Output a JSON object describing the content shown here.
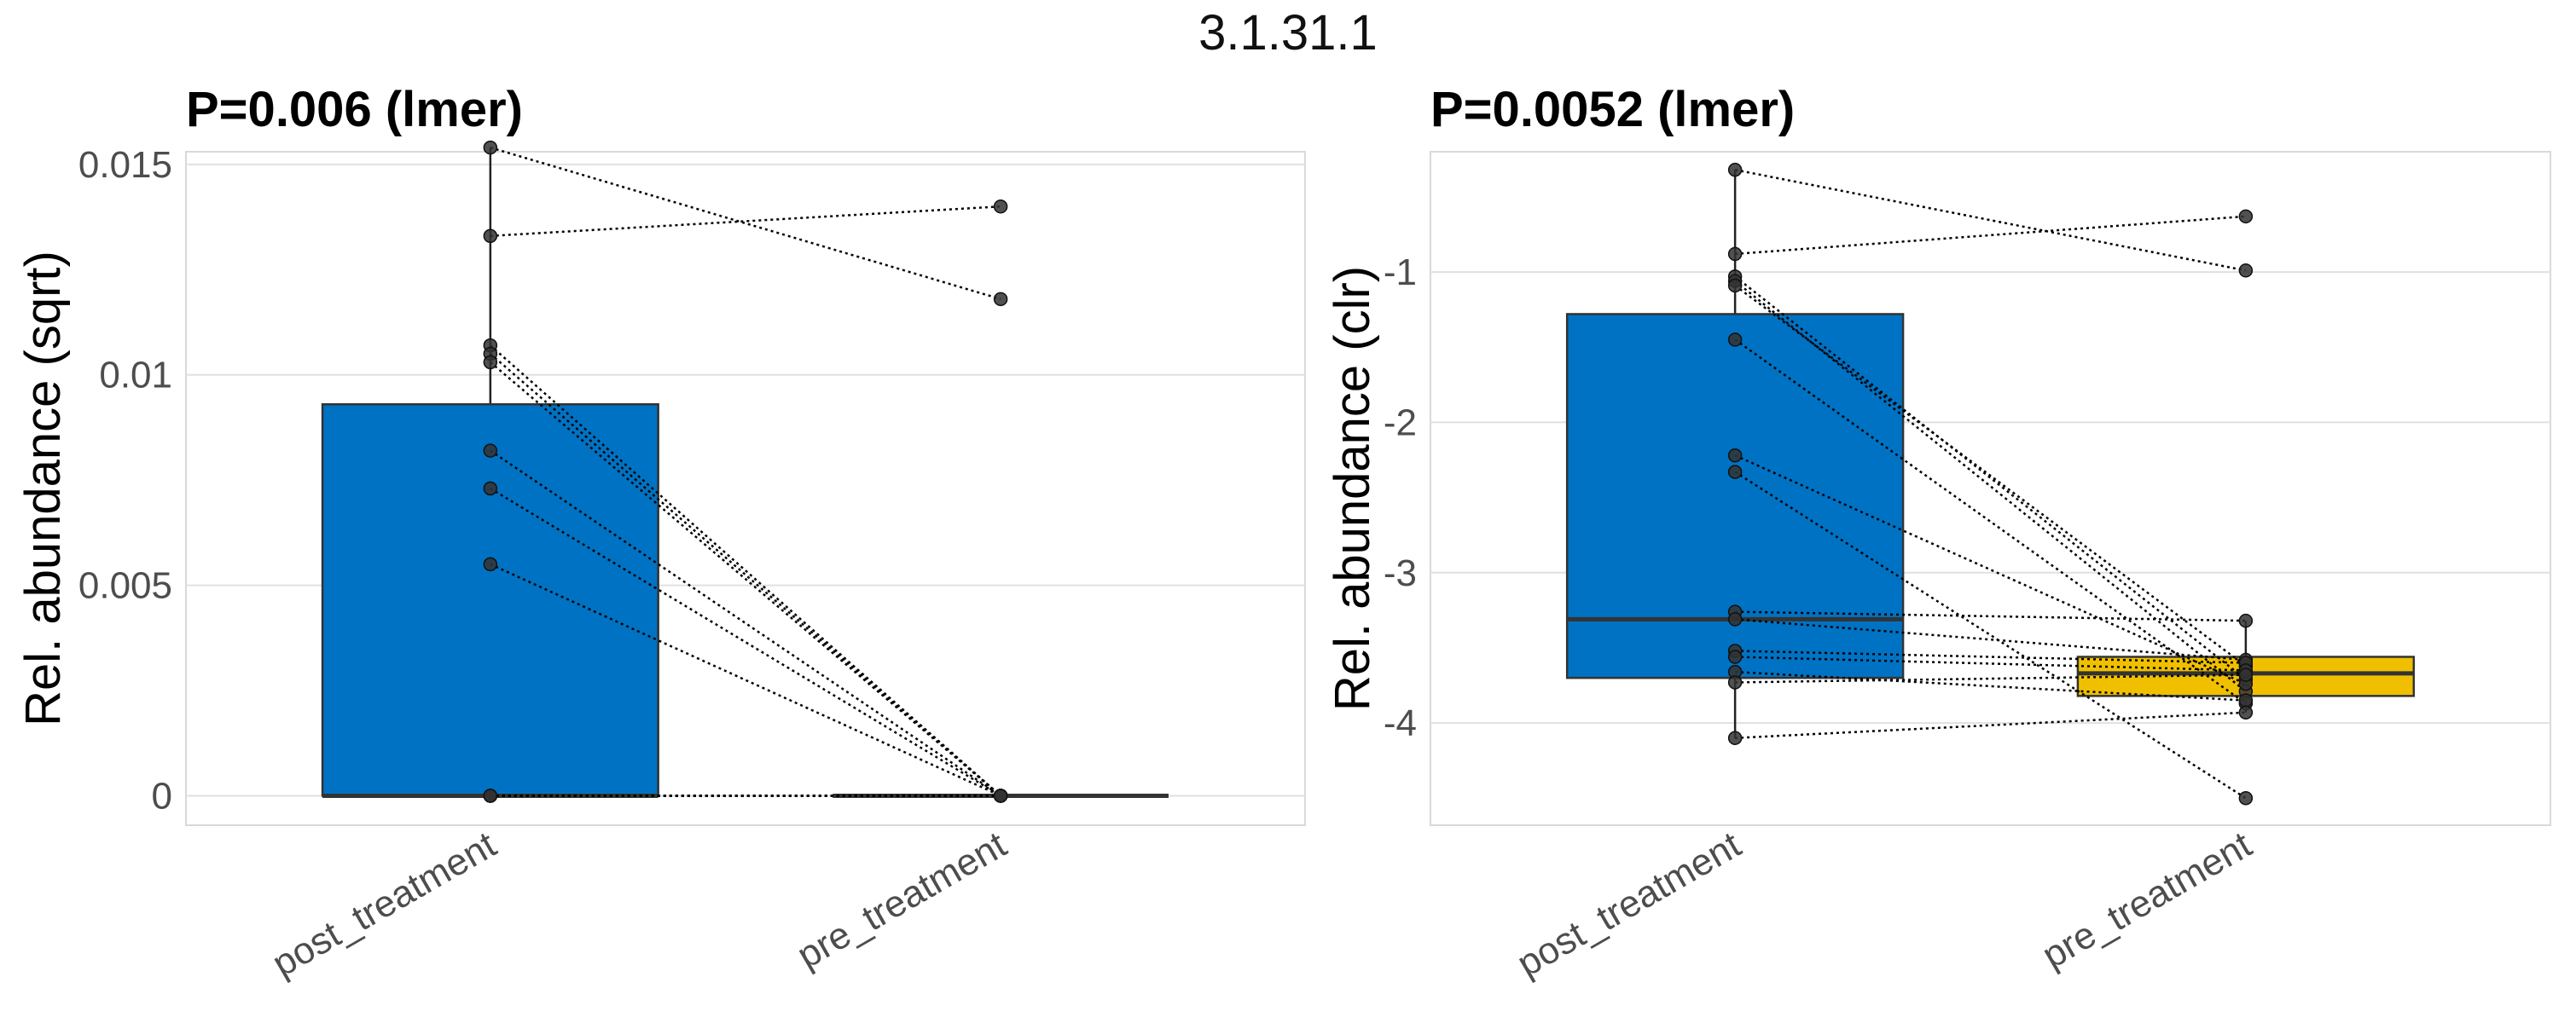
{
  "suptitle": "3.1.31.1",
  "chart_data": [
    {
      "type": "box",
      "title": "P=0.006 (lmer)",
      "xlabel": "",
      "ylabel": "Rel. abundance (sqrt)",
      "categories": [
        "post_treatment",
        "pre_treatment"
      ],
      "ylim": [
        -0.0007,
        0.0153
      ],
      "yticks": [
        0,
        0.005,
        0.01,
        0.015
      ],
      "ytick_labels": [
        "0",
        "0.005",
        "0.01",
        "0.015"
      ],
      "grid": true,
      "boxes": [
        {
          "category": "post_treatment",
          "q1": 0,
          "median": 0,
          "q3": 0.0093,
          "whisker_low": 0,
          "whisker_high": 0.0154,
          "fill": "#0072C3"
        },
        {
          "category": "pre_treatment",
          "q1": 0,
          "median": 0,
          "q3": 0,
          "whisker_low": 0,
          "whisker_high": 0,
          "fill": "#F0C000"
        }
      ],
      "pairs": [
        [
          0.0154,
          0.0118
        ],
        [
          0.0133,
          0.014
        ],
        [
          0.0107,
          0
        ],
        [
          0.0105,
          0
        ],
        [
          0.0103,
          0
        ],
        [
          0.0082,
          0
        ],
        [
          0.0073,
          0
        ],
        [
          0.0055,
          0
        ],
        [
          0,
          0
        ],
        [
          0,
          0
        ],
        [
          0,
          0
        ],
        [
          0,
          0
        ],
        [
          0,
          0
        ],
        [
          0,
          0
        ]
      ]
    },
    {
      "type": "box",
      "title": "P=0.0052 (lmer)",
      "xlabel": "",
      "ylabel": "Rel. abundance (clr)",
      "categories": [
        "post_treatment",
        "pre_treatment"
      ],
      "ylim": [
        -4.68,
        -0.2
      ],
      "yticks": [
        -4,
        -3,
        -2,
        -1
      ],
      "ytick_labels": [
        "-4",
        "-3",
        "-2",
        "-1"
      ],
      "grid": true,
      "boxes": [
        {
          "category": "post_treatment",
          "q1": -3.7,
          "median": -3.31,
          "q3": -1.28,
          "whisker_low": -4.1,
          "whisker_high": -0.32,
          "fill": "#0072C3"
        },
        {
          "category": "pre_treatment",
          "q1": -3.82,
          "median": -3.67,
          "q3": -3.56,
          "whisker_low": -3.93,
          "whisker_high": -3.32,
          "fill": "#F0C000"
        }
      ],
      "pairs": [
        [
          -0.32,
          -0.99
        ],
        [
          -0.88,
          -0.63
        ],
        [
          -1.03,
          -3.71
        ],
        [
          -1.06,
          -3.79
        ],
        [
          -1.09,
          -3.62
        ],
        [
          -1.45,
          -3.87
        ],
        [
          -2.22,
          -3.74
        ],
        [
          -2.33,
          -4.5
        ],
        [
          -3.26,
          -3.32
        ],
        [
          -3.31,
          -3.58
        ],
        [
          -3.52,
          -3.6
        ],
        [
          -3.56,
          -3.65
        ],
        [
          -3.66,
          -3.85
        ],
        [
          -3.73,
          -3.68
        ],
        [
          -4.1,
          -3.93
        ]
      ]
    }
  ]
}
